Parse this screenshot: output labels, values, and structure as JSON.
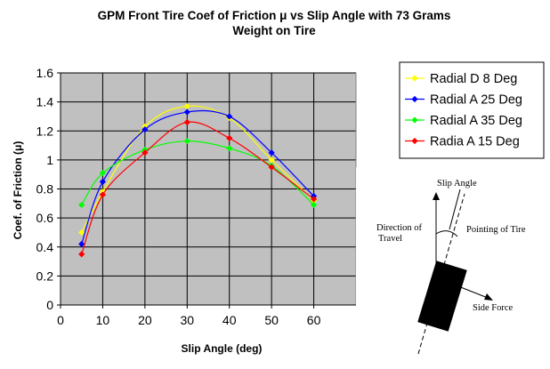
{
  "chart_data": {
    "type": "line",
    "title_lines": [
      "GPM Front Tire Coef of Friction μ vs Slip Angle with 73 Grams",
      "Weight on Tire"
    ],
    "xlabel": "Slip Angle (deg)",
    "ylabel": "Coef. of Friction (μ)",
    "xlim": [
      0,
      70
    ],
    "ylim": [
      0,
      1.6
    ],
    "x_ticks": [
      "0",
      "10",
      "20",
      "30",
      "40",
      "50",
      "60"
    ],
    "y_ticks": [
      "0",
      "0.2",
      "0.4",
      "0.6",
      "0.8",
      "1",
      "1.2",
      "1.4",
      "1.6"
    ],
    "grid": true,
    "plot_background": "#c0c0c0",
    "legend_position": "top-right",
    "series": [
      {
        "name": "Radial D 8 Deg",
        "color": "#ffff00",
        "x": [
          5,
          10,
          20,
          30,
          40,
          50,
          60
        ],
        "y": [
          0.5,
          0.78,
          1.23,
          1.37,
          1.29,
          1.0,
          0.72
        ]
      },
      {
        "name": "Radial A 25 Deg",
        "color": "#0000ff",
        "x": [
          5,
          10,
          20,
          30,
          40,
          50,
          60
        ],
        "y": [
          0.42,
          0.85,
          1.21,
          1.33,
          1.3,
          1.05,
          0.75
        ]
      },
      {
        "name": "Radial A 35 Deg",
        "color": "#00ff00",
        "x": [
          5,
          10,
          20,
          30,
          40,
          50,
          60
        ],
        "y": [
          0.69,
          0.91,
          1.07,
          1.13,
          1.08,
          0.96,
          0.69
        ]
      },
      {
        "name": "Radia A 15 Deg",
        "color": "#ff0000",
        "x": [
          5,
          10,
          20,
          30,
          40,
          50,
          60
        ],
        "y": [
          0.35,
          0.76,
          1.05,
          1.26,
          1.15,
          0.95,
          0.73
        ]
      }
    ]
  },
  "diagram": {
    "slip_angle": "Slip Angle",
    "direction_line1": "Direction of",
    "direction_line2": "Travel",
    "pointing": "Pointing of Tire",
    "side_force": "Side Force"
  }
}
